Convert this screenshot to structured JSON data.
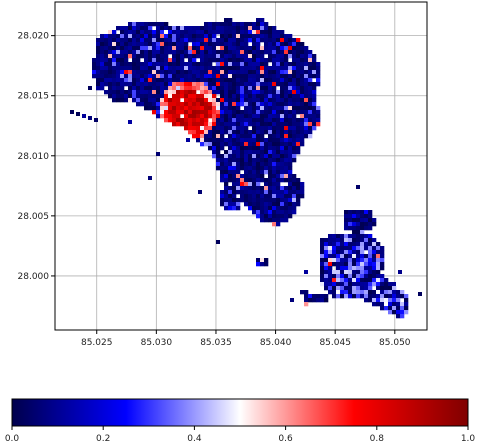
{
  "chart_data": {
    "type": "heatmap",
    "title": "",
    "xlabel": "",
    "ylabel": "",
    "xlim": [
      85.0215,
      85.0527
    ],
    "ylim": [
      27.9955,
      28.0228
    ],
    "x_ticks": [
      "85.025",
      "85.030",
      "85.035",
      "85.040",
      "85.045",
      "85.050"
    ],
    "x_tick_values": [
      85.025,
      85.03,
      85.035,
      85.04,
      85.045,
      85.05
    ],
    "y_ticks": [
      "28.000",
      "28.005",
      "28.010",
      "28.015",
      "28.020"
    ],
    "y_tick_values": [
      28.0,
      28.005,
      28.01,
      28.015,
      28.02
    ],
    "grid": true,
    "colormap": "seismic",
    "colorbar": {
      "orientation": "horizontal",
      "placement": "bottom",
      "range": [
        0.0,
        1.0
      ],
      "ticks": [
        "0.0",
        "0.2",
        "0.4",
        "0.6",
        "0.8",
        "1.0"
      ],
      "tick_values": [
        0.0,
        0.2,
        0.4,
        0.6,
        0.8,
        1.0
      ]
    },
    "regions": [
      {
        "name": "central-cluster",
        "value_range": [
          0.0,
          0.15
        ],
        "note": "predominantly low values"
      },
      {
        "name": "hotspot-west",
        "center": [
          85.0327,
          28.0127
        ],
        "value_range": [
          0.75,
          0.95
        ]
      },
      {
        "name": "southeast-cluster",
        "center": [
          85.048,
          27.9995
        ],
        "value_range": [
          0.0,
          0.4
        ]
      }
    ]
  },
  "colors": {
    "low": "#00004c",
    "mid": "#ffffff",
    "high": "#800000",
    "grid": "#b0b0b0",
    "axes": "#000000"
  }
}
